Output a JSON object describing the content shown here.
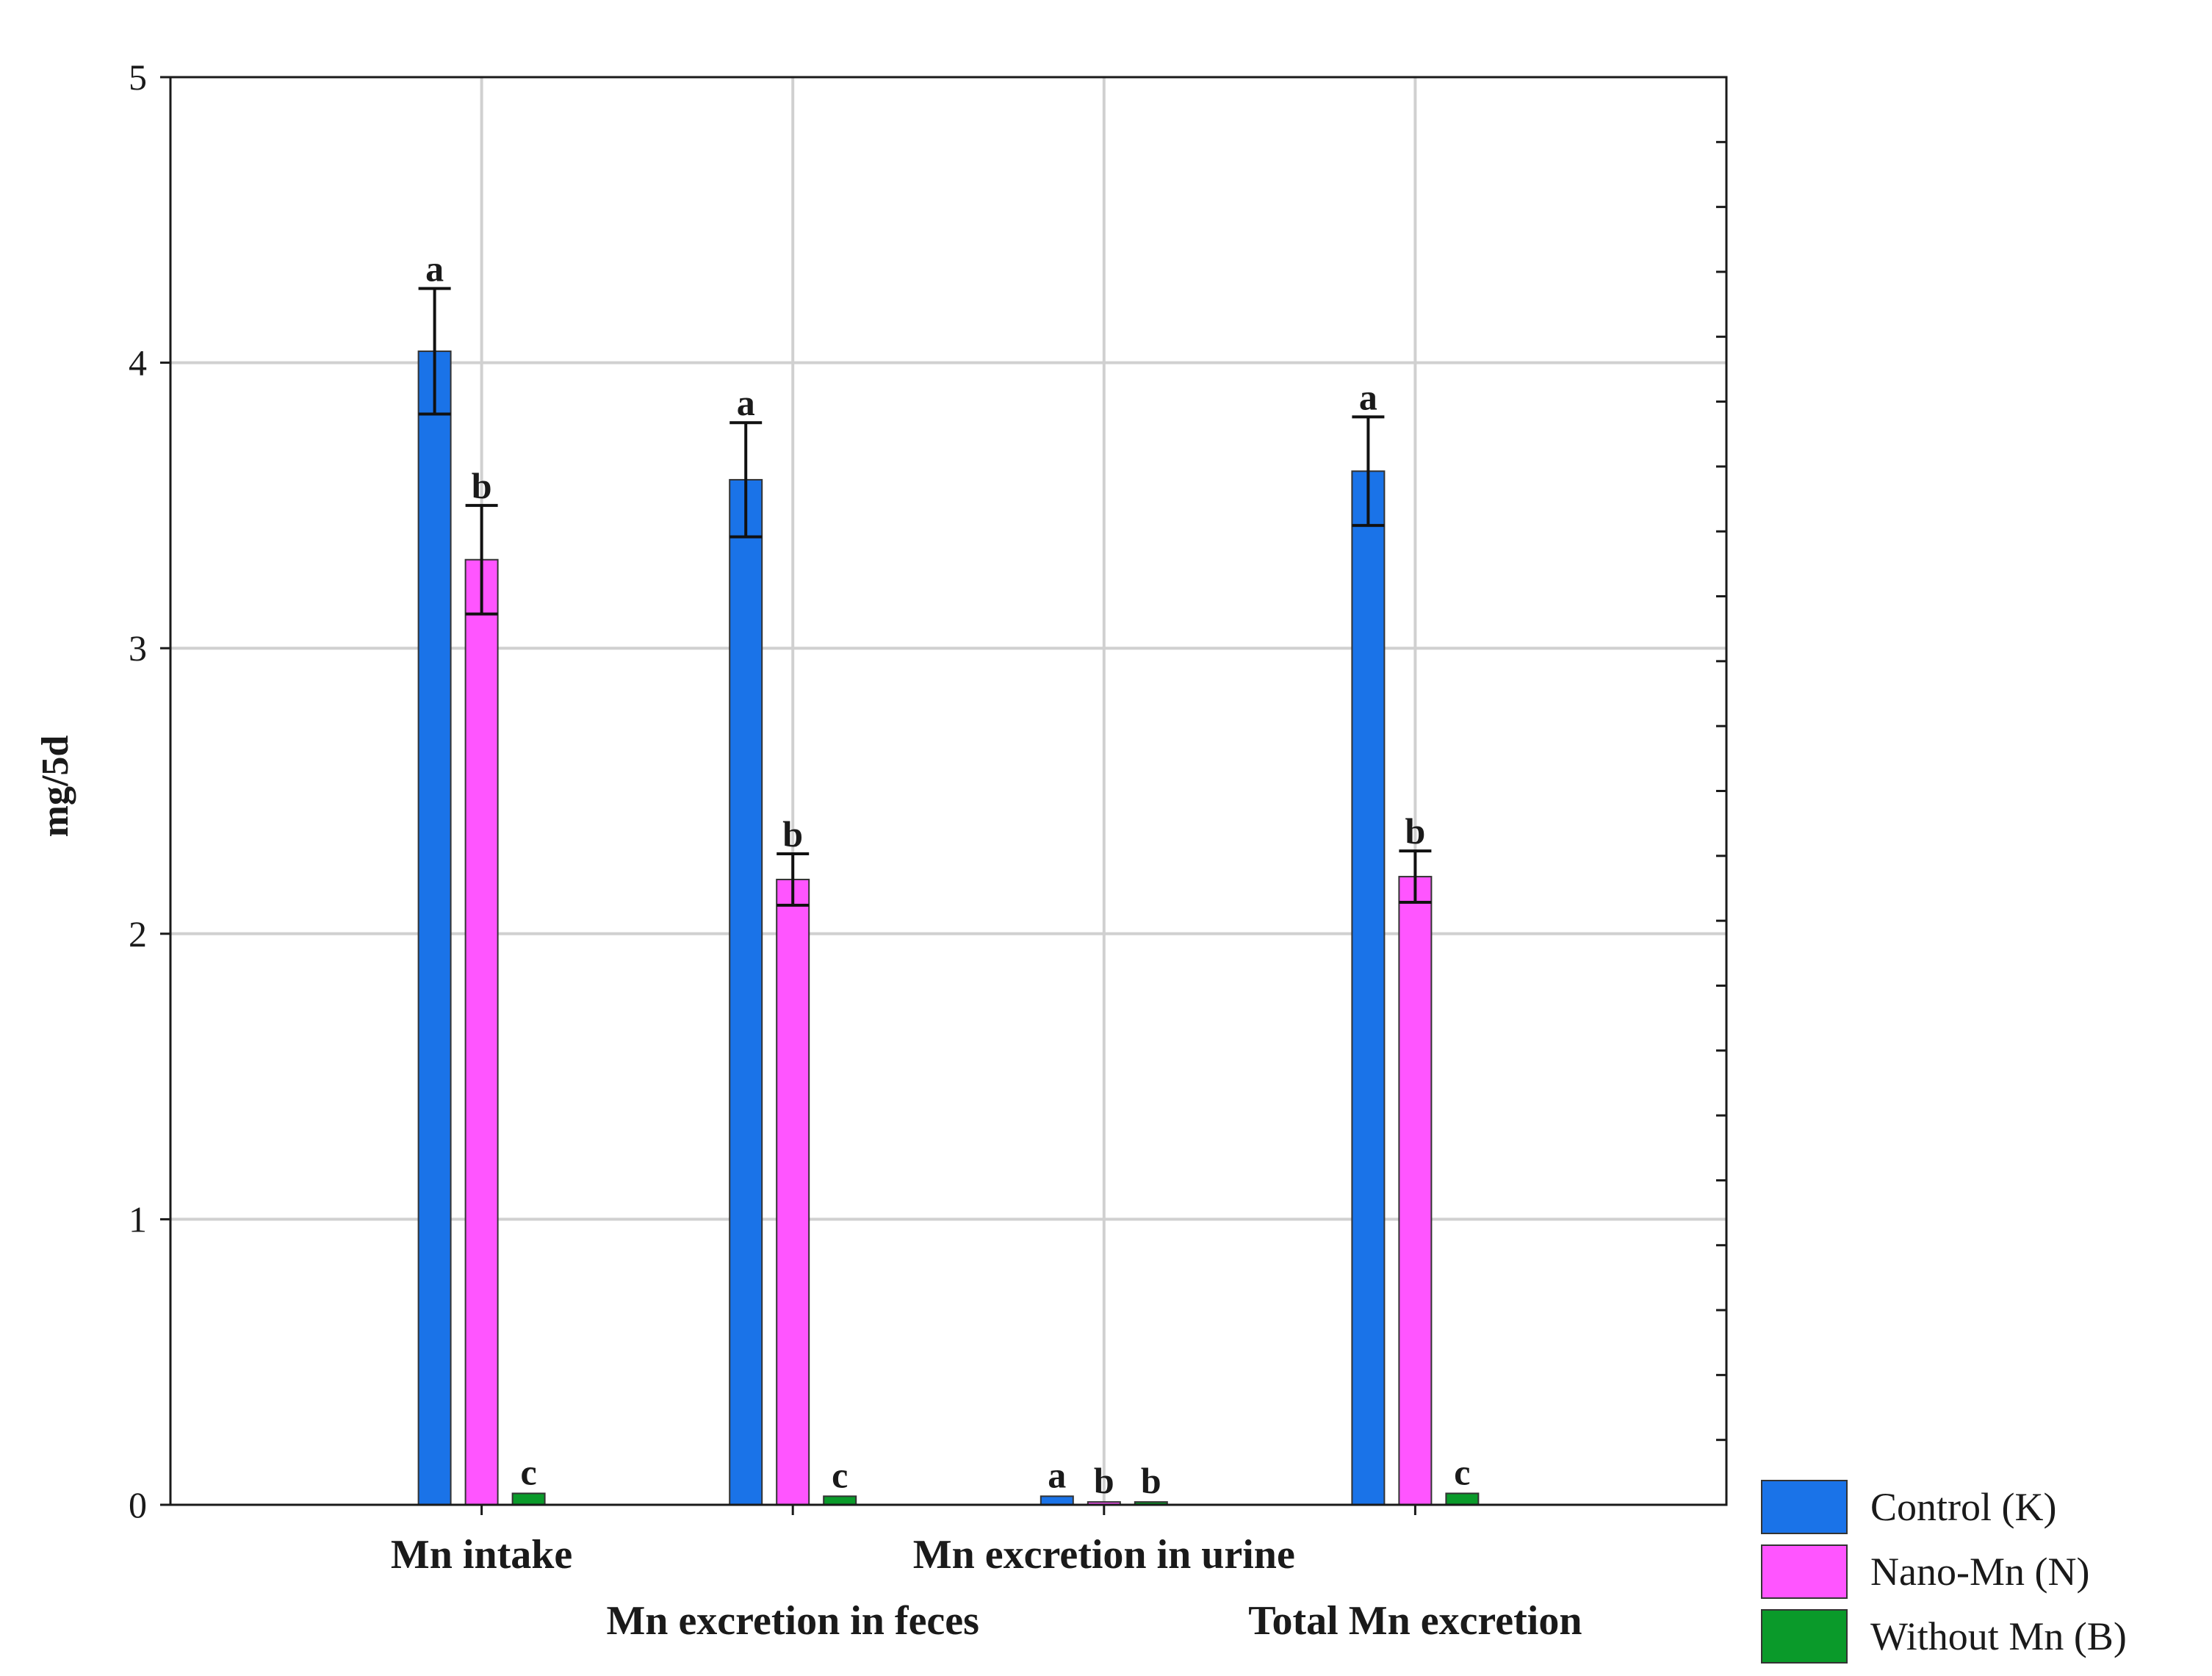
{
  "chart_data": {
    "type": "bar",
    "ylabel": "mg/5d",
    "xlabel": "",
    "ylim": [
      0,
      5
    ],
    "yticks": [
      "0",
      "1",
      "2",
      "3",
      "4",
      "5"
    ],
    "grid": true,
    "legend_position": "bottom-right, outside plot",
    "categories": [
      "Mn intake",
      "Mn excretion in feces",
      "Mn excretion in urine",
      "Total Mn excretion"
    ],
    "series": [
      {
        "name": "Control (K)",
        "color": "#1a73e8",
        "values": [
          4.04,
          3.59,
          0.03,
          3.62
        ],
        "errors": [
          0.22,
          0.2,
          0.0,
          0.19
        ],
        "labels": [
          "a",
          "a",
          "a",
          "a"
        ]
      },
      {
        "name": "Nano-Mn (N)",
        "color": "#ff55ff",
        "values": [
          3.31,
          2.19,
          0.01,
          2.2
        ],
        "errors": [
          0.19,
          0.09,
          0.0,
          0.09
        ],
        "labels": [
          "b",
          "b",
          "b",
          "b"
        ]
      },
      {
        "name": "Without Mn (B)",
        "color": "#0a9a2a",
        "values": [
          0.04,
          0.03,
          0.01,
          0.04
        ],
        "errors": [
          0.0,
          0.0,
          0.0,
          0.0
        ],
        "labels": [
          "c",
          "c",
          "b",
          "c"
        ]
      }
    ]
  }
}
